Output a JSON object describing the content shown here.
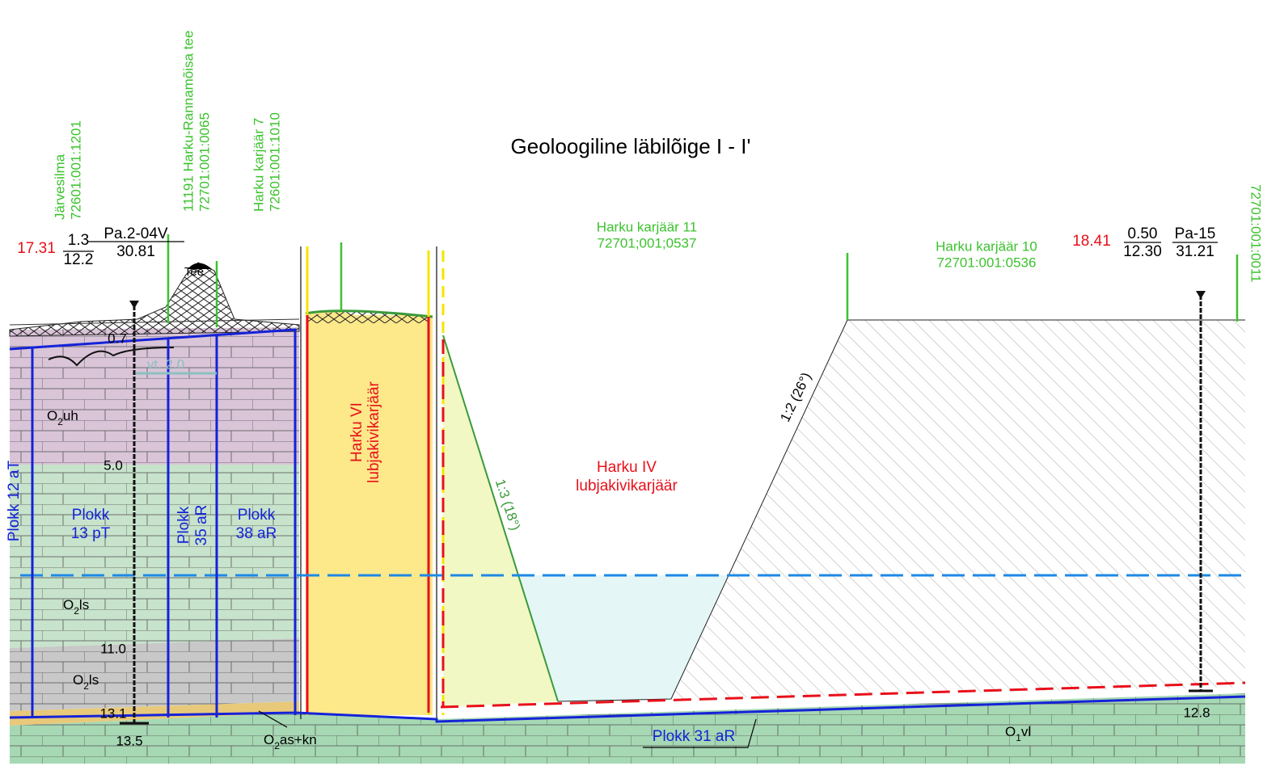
{
  "title": "Geoloogiline läbilõige I - I'",
  "parcels": [
    {
      "lines": [
        "Järvesilma",
        "72601:001:1201"
      ]
    },
    {
      "lines": [
        "11191 Harku-Rannamõisa tee",
        "72701:001:0065"
      ]
    },
    {
      "lines": [
        "Harku karjäär 7",
        "72601:001:1010"
      ]
    },
    {
      "lines": [
        "Harku karjäär 11",
        "72701;001;0537"
      ]
    },
    {
      "lines": [
        "Harku karjäär 10",
        "72701:001:0536"
      ]
    },
    {
      "lines": [
        "72701:001:0011"
      ]
    }
  ],
  "boreholes": [
    {
      "elevation": "17.31",
      "numerator": "1.3",
      "denominator": "12.2",
      "name": "Pa.2-04V",
      "ground": "30.81",
      "depths": [
        "0.7",
        "5.0",
        "11.0",
        "13.1",
        "13.5"
      ]
    },
    {
      "elevation": "18.41",
      "numerator": "0.50",
      "denominator": "12.30",
      "name": "Pa-15",
      "ground": "31.21",
      "depths": [
        "12.8"
      ]
    }
  ],
  "water_level": "vt. 2.0",
  "road": "Tee",
  "layers": [
    {
      "symbol": "O",
      "index": "2",
      "name": "uh"
    },
    {
      "symbol": "O",
      "index": "2",
      "name": "ls"
    },
    {
      "symbol": "O",
      "index": "2",
      "name": "ls"
    },
    {
      "symbol": "O",
      "index": "2",
      "name": "as+kn"
    },
    {
      "symbol": "O",
      "index": "1",
      "name": "vl"
    }
  ],
  "quarries": [
    {
      "lines": [
        "Harku VI",
        "lubjakivikarjäär"
      ]
    },
    {
      "lines": [
        "Harku IV",
        "lubjakivikarjäär"
      ]
    }
  ],
  "slopes": [
    "1:3 (18°)",
    "1:2 (26°)"
  ],
  "blocks": [
    {
      "lines": [
        "Plokk 12 aT"
      ]
    },
    {
      "lines": [
        "Plokk",
        "13 pT"
      ]
    },
    {
      "lines": [
        "Plokk",
        "35 aR"
      ]
    },
    {
      "lines": [
        "Plokk",
        "38 aR"
      ]
    },
    {
      "lines": [
        "Plokk 31 aR"
      ]
    }
  ]
}
